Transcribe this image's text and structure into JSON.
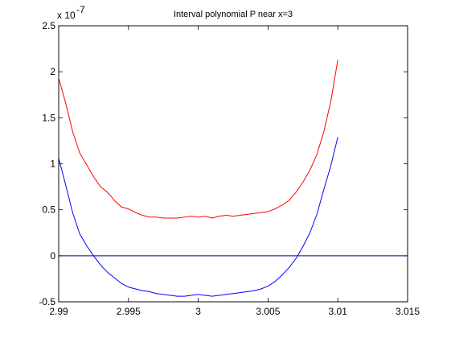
{
  "chart_data": {
    "type": "line",
    "title": "Interval polynomial P near x=3",
    "xlabel": "",
    "ylabel": "",
    "xlim": [
      2.99,
      3.015
    ],
    "ylim": [
      -0.5,
      2.5
    ],
    "y_exponent_label": "x 10",
    "y_exponent_power": "-7",
    "x_ticks": [
      2.99,
      2.995,
      3,
      3.005,
      3.01,
      3.015
    ],
    "x_tick_labels": [
      "2.99",
      "2.995",
      "3",
      "3.005",
      "3.01",
      "3.015"
    ],
    "y_ticks": [
      -0.5,
      0,
      0.5,
      1,
      1.5,
      2,
      2.5
    ],
    "y_tick_labels": [
      "-0.5",
      "0",
      "0.5",
      "1",
      "1.5",
      "2",
      "2.5"
    ],
    "grid": false,
    "series": [
      {
        "color": "#ff0000",
        "x": [
          2.99,
          2.9905,
          2.991,
          2.9915,
          2.992,
          2.9925,
          2.993,
          2.9935,
          2.994,
          2.9945,
          2.995,
          2.9955,
          2.996,
          2.9965,
          2.997,
          2.9975,
          2.998,
          2.9985,
          2.999,
          2.9995,
          3.0,
          3.0005,
          3.001,
          3.0015,
          3.002,
          3.0025,
          3.003,
          3.0035,
          3.004,
          3.0045,
          3.005,
          3.0055,
          3.006,
          3.0065,
          3.007,
          3.0075,
          3.008,
          3.0085,
          3.009,
          3.0095,
          3.01
        ],
        "y": [
          1.93,
          1.66,
          1.35,
          1.12,
          0.99,
          0.86,
          0.75,
          0.69,
          0.6,
          0.53,
          0.51,
          0.47,
          0.44,
          0.42,
          0.42,
          0.41,
          0.41,
          0.41,
          0.42,
          0.43,
          0.42,
          0.43,
          0.41,
          0.43,
          0.44,
          0.43,
          0.44,
          0.45,
          0.46,
          0.47,
          0.48,
          0.51,
          0.55,
          0.6,
          0.69,
          0.8,
          0.93,
          1.1,
          1.35,
          1.68,
          2.13
        ]
      },
      {
        "color": "#0000ff",
        "x": [
          2.99,
          2.9905,
          2.991,
          2.9915,
          2.992,
          2.9925,
          2.993,
          2.9935,
          2.994,
          2.9945,
          2.995,
          2.9955,
          2.996,
          2.9965,
          2.997,
          2.9975,
          2.998,
          2.9985,
          2.999,
          2.9995,
          3.0,
          3.0005,
          3.001,
          3.0015,
          3.002,
          3.0025,
          3.003,
          3.0035,
          3.004,
          3.0045,
          3.005,
          3.0055,
          3.006,
          3.0065,
          3.007,
          3.0075,
          3.008,
          3.0085,
          3.009,
          3.0095,
          3.01
        ],
        "y": [
          1.06,
          0.77,
          0.47,
          0.24,
          0.11,
          0.0,
          -0.1,
          -0.18,
          -0.24,
          -0.3,
          -0.34,
          -0.36,
          -0.38,
          -0.39,
          -0.41,
          -0.42,
          -0.43,
          -0.44,
          -0.44,
          -0.43,
          -0.42,
          -0.43,
          -0.44,
          -0.43,
          -0.42,
          -0.41,
          -0.4,
          -0.39,
          -0.38,
          -0.36,
          -0.33,
          -0.28,
          -0.21,
          -0.13,
          -0.03,
          0.1,
          0.25,
          0.45,
          0.72,
          0.98,
          1.29
        ]
      }
    ],
    "reference_line": {
      "y": 0,
      "color": "#000080"
    }
  }
}
